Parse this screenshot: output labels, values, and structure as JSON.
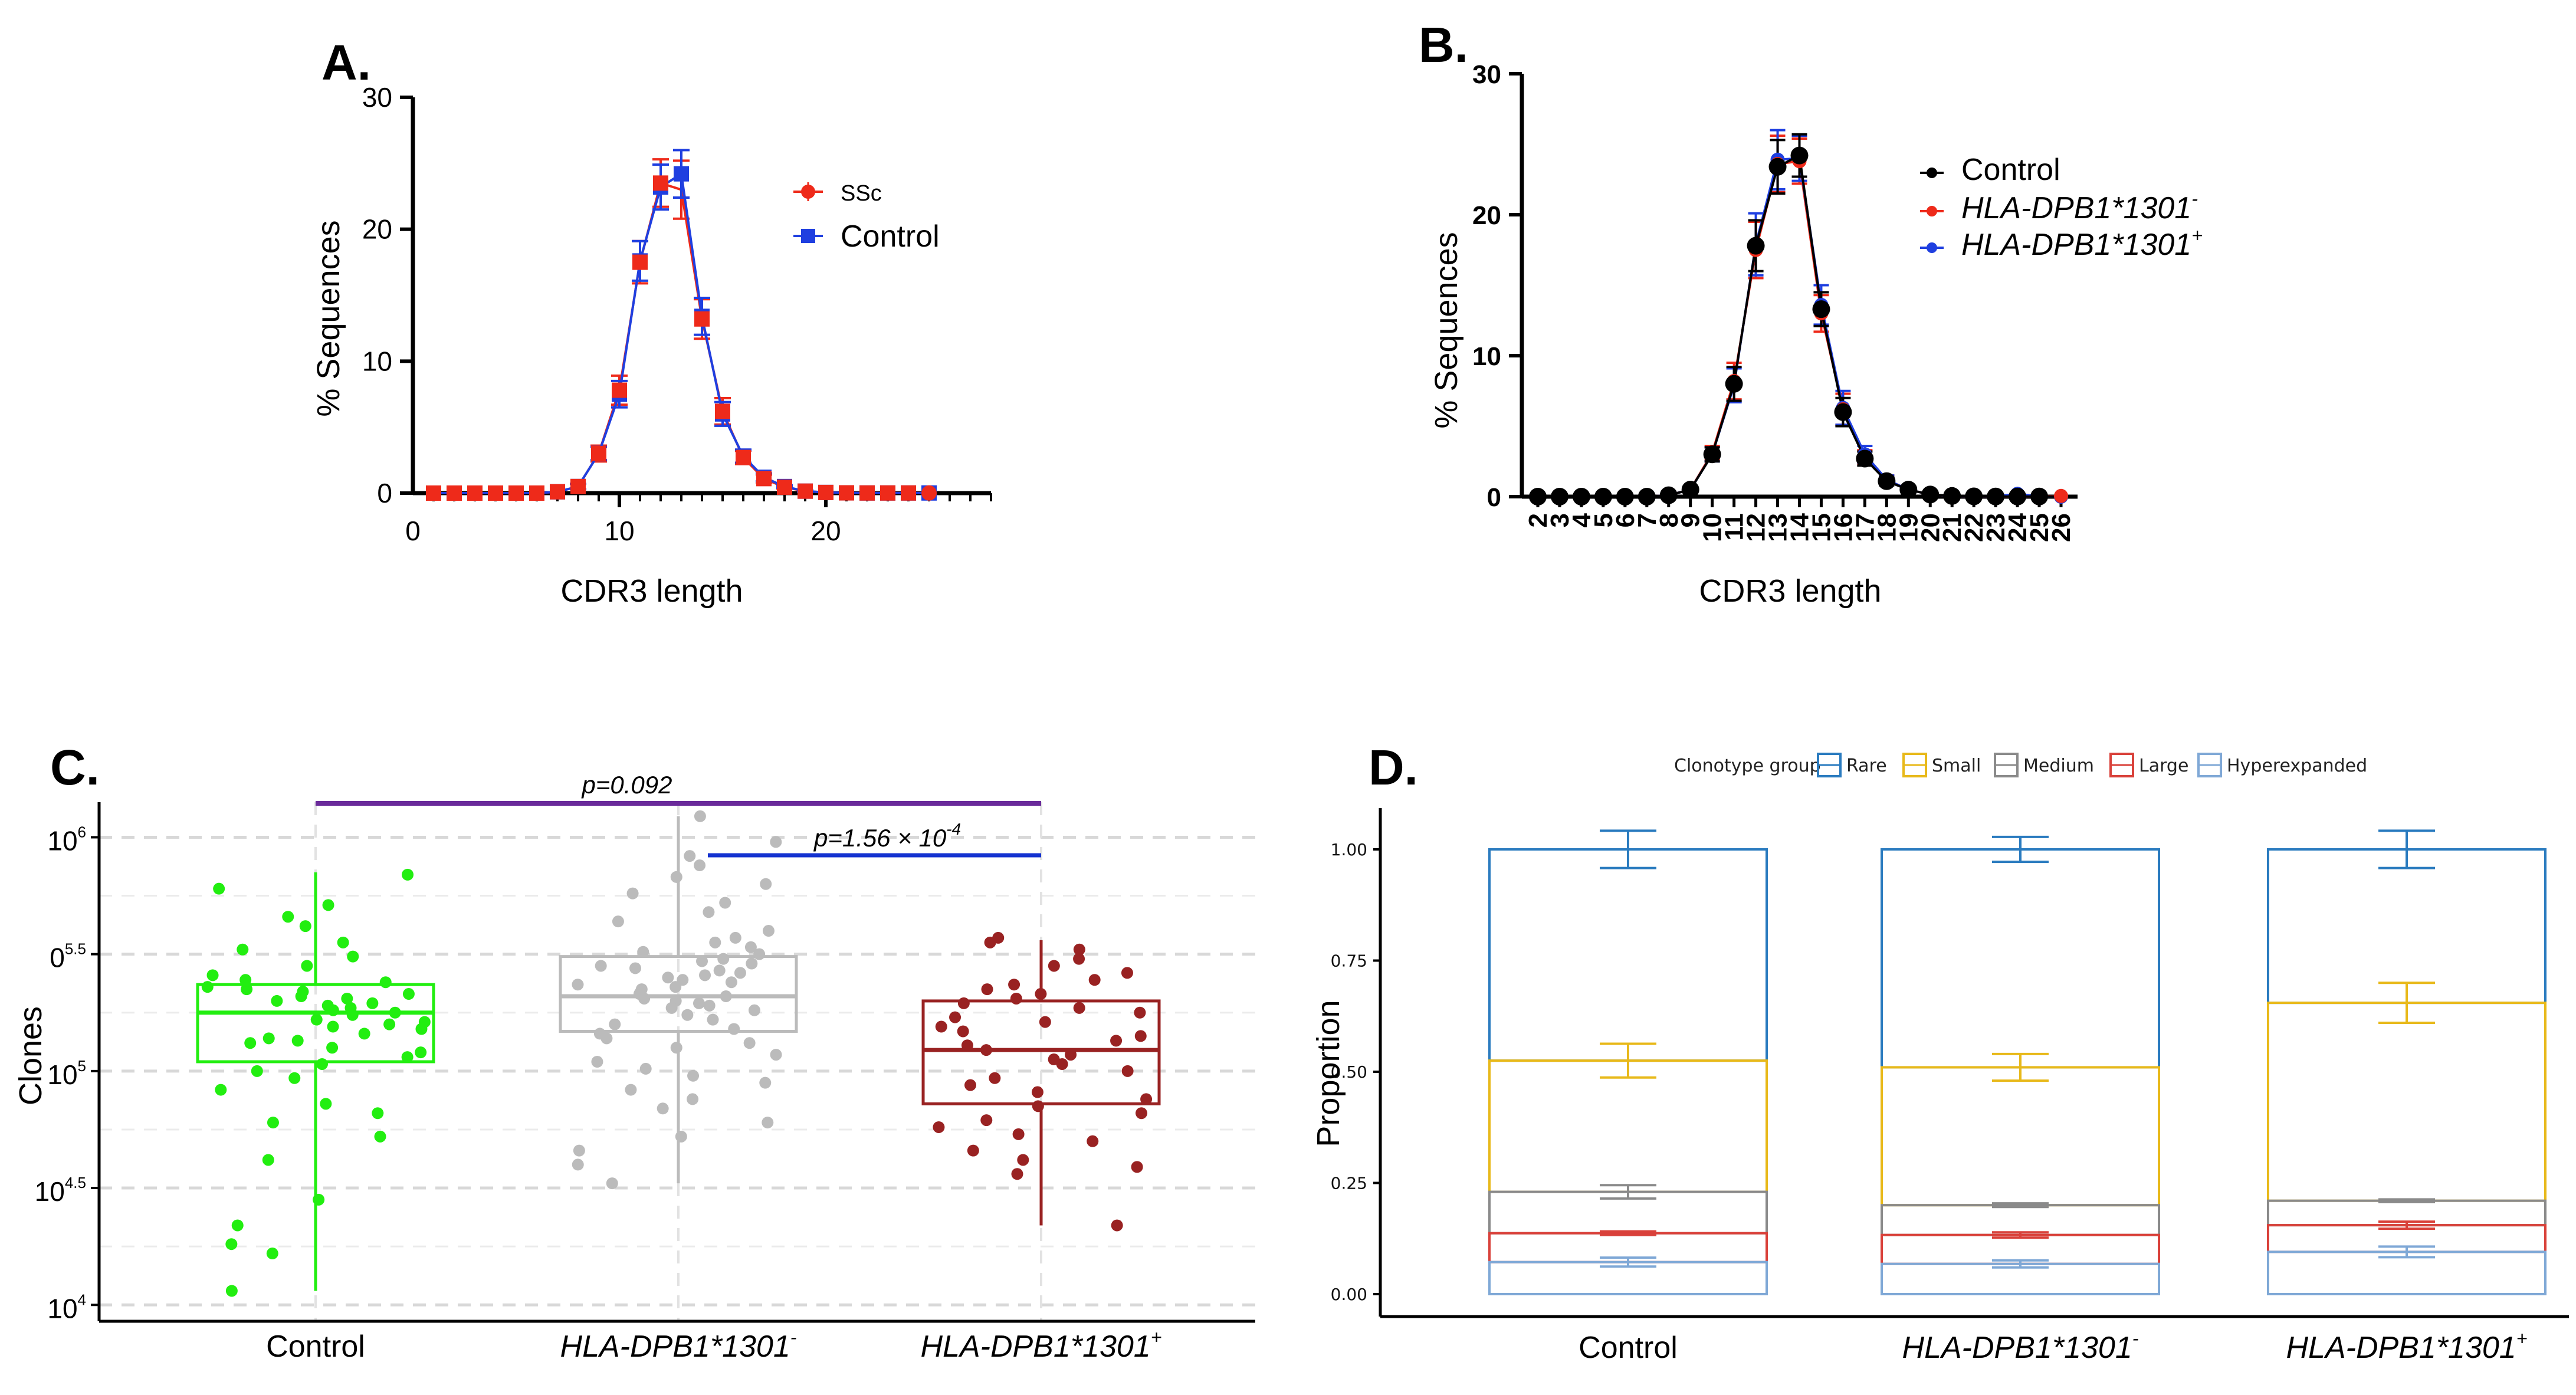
{
  "panels": {
    "A": {
      "letter": "A."
    },
    "B": {
      "letter": "B."
    },
    "C": {
      "letter": "C."
    },
    "D": {
      "letter": "D."
    }
  },
  "chart_data": [
    {
      "id": "A",
      "type": "line",
      "xlabel": "CDR3 length",
      "ylabel": "% Sequences",
      "xlim": [
        0,
        28
      ],
      "ylim": [
        0,
        30
      ],
      "xticks": [
        0,
        10,
        20
      ],
      "yticks": [
        0,
        10,
        20,
        30
      ],
      "legend_position": "top-right",
      "x": [
        1,
        2,
        3,
        4,
        5,
        6,
        7,
        8,
        9,
        10,
        11,
        12,
        13,
        14,
        15,
        16,
        17,
        18,
        19,
        20,
        21,
        22,
        23,
        24,
        25
      ],
      "series": [
        {
          "name": "SSc",
          "color": "#ee2a1a",
          "marker": "circle",
          "values": [
            0,
            0,
            0,
            0,
            0,
            0,
            0.1,
            0.5,
            3.0,
            7.8,
            17.5,
            23.5,
            23.0,
            13.2,
            6.2,
            2.7,
            1.1,
            0.45,
            0.15,
            0.05,
            0.02,
            0.01,
            0.01,
            0.01,
            0.01
          ],
          "err": [
            0,
            0,
            0,
            0,
            0,
            0,
            0,
            0.2,
            0.6,
            1.1,
            1.6,
            1.8,
            2.2,
            1.5,
            1.0,
            0.5,
            0.3,
            0.1,
            0.05,
            0,
            0,
            0,
            0,
            0,
            0
          ]
        },
        {
          "name": "Control",
          "color": "#1f3fe0",
          "marker": "square",
          "values": [
            0,
            0,
            0,
            0,
            0,
            0,
            0.1,
            0.5,
            3.0,
            7.5,
            17.6,
            23.2,
            24.2,
            13.4,
            6.0,
            2.8,
            1.2,
            0.5,
            0.15,
            0.05,
            0.02,
            0.01,
            0.01,
            0.01,
            0.01
          ],
          "err": [
            0,
            0,
            0,
            0,
            0,
            0,
            0,
            0.2,
            0.5,
            1.0,
            1.5,
            1.7,
            1.8,
            1.4,
            0.9,
            0.5,
            0.3,
            0.1,
            0.05,
            0,
            0,
            0,
            0,
            0,
            0
          ]
        }
      ]
    },
    {
      "id": "B",
      "type": "line",
      "xlabel": "CDR3 length",
      "ylabel": "% Sequences",
      "ylim": [
        0,
        30
      ],
      "yticks": [
        0,
        10,
        20,
        30
      ],
      "legend_position": "top-right",
      "x": [
        2,
        3,
        4,
        5,
        6,
        7,
        8,
        9,
        10,
        11,
        12,
        13,
        14,
        15,
        16,
        17,
        18,
        19,
        20,
        21,
        22,
        23,
        24,
        25,
        26
      ],
      "series": [
        {
          "name": "Control",
          "color": "#000000",
          "values": [
            0,
            0,
            0,
            0,
            0,
            0,
            0.1,
            0.5,
            3.0,
            8.0,
            17.8,
            23.4,
            24.2,
            13.3,
            6.0,
            2.7,
            1.1,
            0.5,
            0.15,
            0.05,
            0.02,
            0.01,
            0.01,
            0.01,
            0
          ],
          "err": [
            0,
            0,
            0,
            0,
            0,
            0,
            0,
            0.2,
            0.5,
            1.2,
            1.8,
            1.9,
            1.5,
            1.2,
            1.0,
            0.5,
            0.3,
            0.1,
            0,
            0,
            0,
            0,
            0,
            0,
            0
          ]
        },
        {
          "name": "HLA-DPB1*1301",
          "sup": "-",
          "color": "#ee2a1a",
          "values": [
            0,
            0,
            0,
            0,
            0,
            0,
            0.1,
            0.5,
            3.1,
            8.2,
            17.5,
            23.6,
            23.8,
            13.0,
            6.2,
            2.8,
            1.2,
            0.5,
            0.15,
            0.05,
            0.02,
            0.01,
            0.01,
            0.01,
            0.05
          ],
          "err": [
            0,
            0,
            0,
            0,
            0,
            0,
            0,
            0.2,
            0.5,
            1.3,
            2.0,
            2.0,
            1.6,
            1.3,
            1.1,
            0.5,
            0.3,
            0.1,
            0,
            0,
            0,
            0,
            0,
            0,
            0
          ]
        },
        {
          "name": "HLA-DPB1*1301",
          "sup": "+",
          "color": "#1f3fe0",
          "values": [
            0,
            0,
            0,
            0,
            0,
            0,
            0.1,
            0.5,
            3.0,
            7.9,
            17.9,
            23.9,
            24.0,
            13.6,
            6.3,
            3.0,
            1.2,
            0.5,
            0.15,
            0.05,
            0.02,
            0.01,
            0.2,
            0.01,
            0
          ],
          "err": [
            0,
            0,
            0,
            0,
            0,
            0,
            0,
            0.2,
            0.5,
            1.2,
            2.2,
            2.1,
            1.6,
            1.4,
            1.2,
            0.6,
            0.3,
            0.1,
            0,
            0,
            0,
            0,
            0,
            0,
            0
          ]
        }
      ]
    },
    {
      "id": "C",
      "type": "scatter",
      "subtype": "box-with-jitter",
      "ylabel": "Clones",
      "yscale": "log10",
      "ylim": [
        3.93,
        6.15
      ],
      "yticks": [
        {
          "v": 4.0,
          "base": "10",
          "exp": "4"
        },
        {
          "v": 4.5,
          "base": "10",
          "exp": "4.5"
        },
        {
          "v": 5.0,
          "base": "10",
          "exp": "5"
        },
        {
          "v": 5.5,
          "base": "0",
          "exp": "5.5"
        },
        {
          "v": 6.0,
          "base": "10",
          "exp": "6"
        }
      ],
      "categories": [
        {
          "label": "Control",
          "italic": false,
          "sup": ""
        },
        {
          "label": "HLA-DPB1*1301",
          "italic": true,
          "sup": "-"
        },
        {
          "label": "HLA-DPB1*1301",
          "italic": true,
          "sup": "+"
        }
      ],
      "comparisons": [
        {
          "from": 0,
          "to": 2,
          "text": "p=0.092",
          "color": "#6a2a9a"
        },
        {
          "from": 1,
          "to": 2,
          "text": "p=1.56 × 10",
          "sup": "-4",
          "color": "#1432d0"
        }
      ],
      "groups": [
        {
          "color": "#22ee10",
          "q1": 5.04,
          "median": 5.25,
          "q3": 5.37,
          "whisker_low": 4.06,
          "whisker_high": 5.85,
          "points": [
            5.84,
            5.78,
            5.71,
            5.66,
            5.62,
            5.55,
            5.52,
            5.49,
            5.45,
            5.41,
            5.39,
            5.38,
            5.36,
            5.35,
            5.34,
            5.33,
            5.32,
            5.31,
            5.3,
            5.29,
            5.28,
            5.27,
            5.26,
            5.25,
            5.24,
            5.22,
            5.21,
            5.2,
            5.19,
            5.18,
            5.16,
            5.14,
            5.13,
            5.12,
            5.1,
            5.08,
            5.06,
            5.03,
            5.0,
            4.97,
            4.92,
            4.86,
            4.82,
            4.78,
            4.72,
            4.62,
            4.45,
            4.34,
            4.26,
            4.22,
            4.06
          ]
        },
        {
          "color": "#bbbbbb",
          "q1": 5.17,
          "median": 5.32,
          "q3": 5.49,
          "whisker_low": 4.52,
          "whisker_high": 6.09,
          "points": [
            6.09,
            5.98,
            5.92,
            5.88,
            5.83,
            5.8,
            5.76,
            5.72,
            5.68,
            5.64,
            5.6,
            5.57,
            5.55,
            5.53,
            5.51,
            5.5,
            5.48,
            5.47,
            5.46,
            5.45,
            5.44,
            5.43,
            5.42,
            5.41,
            5.4,
            5.39,
            5.38,
            5.37,
            5.36,
            5.35,
            5.34,
            5.33,
            5.32,
            5.31,
            5.3,
            5.29,
            5.28,
            5.27,
            5.26,
            5.24,
            5.22,
            5.2,
            5.18,
            5.16,
            5.14,
            5.12,
            5.1,
            5.07,
            5.04,
            5.01,
            4.98,
            4.95,
            4.92,
            4.88,
            4.84,
            4.78,
            4.72,
            4.66,
            4.6,
            4.52
          ]
        },
        {
          "color": "#992222",
          "q1": 4.86,
          "median": 5.09,
          "q3": 5.3,
          "whisker_low": 4.34,
          "whisker_high": 5.56,
          "points": [
            5.57,
            5.55,
            5.52,
            5.48,
            5.45,
            5.42,
            5.39,
            5.37,
            5.35,
            5.33,
            5.31,
            5.29,
            5.27,
            5.25,
            5.23,
            5.21,
            5.19,
            5.17,
            5.15,
            5.13,
            5.11,
            5.09,
            5.07,
            5.05,
            5.03,
            5.0,
            4.97,
            4.94,
            4.91,
            4.88,
            4.85,
            4.82,
            4.79,
            4.76,
            4.73,
            4.7,
            4.66,
            4.62,
            4.59,
            4.56,
            4.34
          ]
        }
      ]
    },
    {
      "id": "D",
      "type": "bar",
      "subtype": "stacked-proportion",
      "ylabel": "Proportion",
      "ylim": [
        0,
        1.06
      ],
      "yticks": [
        "0.00",
        "0.25",
        "0.50",
        "0.75",
        "1.00"
      ],
      "legend_title": "Clonotype group",
      "legend_position": "top",
      "categories": [
        {
          "label": "Control",
          "italic": false,
          "sup": ""
        },
        {
          "label": "HLA-DPB1*1301",
          "italic": true,
          "sup": "-"
        },
        {
          "label": "HLA-DPB1*1301",
          "italic": true,
          "sup": "+"
        }
      ],
      "groups": [
        {
          "name": "Rare",
          "color": "#2a7bbf"
        },
        {
          "name": "Small",
          "color": "#e8b91a"
        },
        {
          "name": "Medium",
          "color": "#8a8a8a"
        },
        {
          "name": "Large",
          "color": "#d9413a"
        },
        {
          "name": "Hyperexpanded",
          "color": "#7fa8d6"
        }
      ],
      "top_values": {
        "Rare": [
          1.0,
          1.0,
          1.0
        ],
        "Small": [
          0.525,
          0.51,
          0.655
        ],
        "Medium": [
          0.23,
          0.2,
          0.21
        ],
        "Large": [
          0.137,
          0.133,
          0.155
        ],
        "Hyperexpanded": [
          0.072,
          0.068,
          0.095
        ]
      },
      "errors": {
        "Rare": [
          0.042,
          0.028,
          0.042
        ],
        "Small": [
          0.038,
          0.03,
          0.045
        ],
        "Medium": [
          0.015,
          0.004,
          0.003
        ],
        "Large": [
          0.004,
          0.006,
          0.008
        ],
        "Hyperexpanded": [
          0.01,
          0.008,
          0.012
        ]
      }
    }
  ]
}
